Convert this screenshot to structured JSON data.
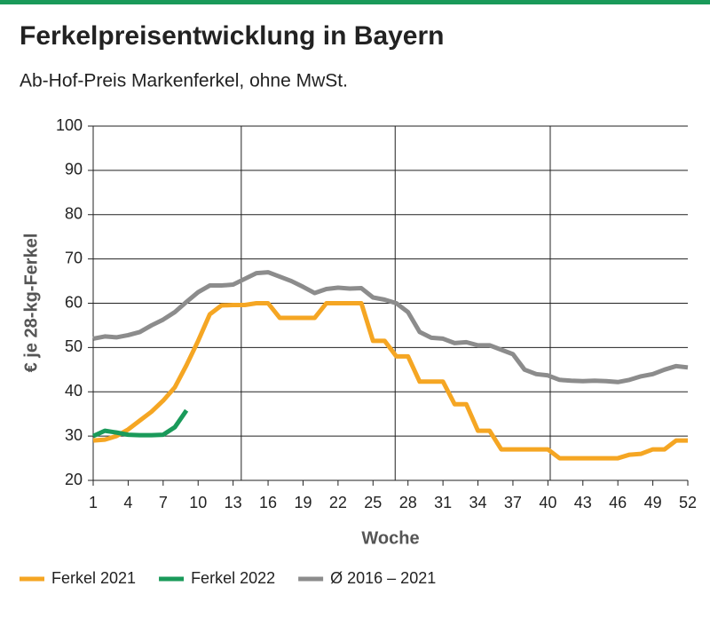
{
  "chart_data": {
    "type": "line",
    "title": "Ferkelpreisentwicklung in Bayern",
    "subtitle": "Ab-Hof-Preis Markenferkel, ohne MwSt.",
    "x_label": "Woche",
    "y_label": "€ je 28-kg-Ferkel",
    "x": [
      1,
      2,
      3,
      4,
      5,
      6,
      7,
      8,
      9,
      10,
      11,
      12,
      13,
      14,
      15,
      16,
      17,
      18,
      19,
      20,
      21,
      22,
      23,
      24,
      25,
      26,
      27,
      28,
      29,
      30,
      31,
      32,
      33,
      34,
      35,
      36,
      37,
      38,
      39,
      40,
      41,
      42,
      43,
      44,
      45,
      46,
      47,
      48,
      49,
      50,
      51,
      52
    ],
    "xlim": [
      1,
      52
    ],
    "xticks": [
      1,
      4,
      7,
      10,
      13,
      16,
      19,
      22,
      25,
      28,
      31,
      34,
      37,
      40,
      43,
      46,
      49,
      52
    ],
    "xgrid": [
      13.7,
      26.9,
      40.2
    ],
    "ylim": [
      20,
      100
    ],
    "yticks": [
      20,
      30,
      40,
      50,
      60,
      70,
      80,
      90,
      100
    ],
    "grid": true,
    "legend": "bottom",
    "series": [
      {
        "name": "Ferkel 2021",
        "color": "#f5a623",
        "values": [
          29,
          29.2,
          30,
          31.5,
          33.5,
          35.5,
          38,
          41,
          46,
          51.5,
          57.5,
          59.5,
          59.6,
          59.6,
          60,
          60,
          56.7,
          56.7,
          56.7,
          56.7,
          60,
          60,
          60,
          60,
          51.5,
          51.5,
          48,
          48,
          42.3,
          42.3,
          42.3,
          37.2,
          37.2,
          31.2,
          31.2,
          27,
          27,
          27,
          27,
          27,
          25,
          25,
          25,
          25,
          25,
          25,
          25.8,
          26,
          27,
          27,
          29,
          29
        ]
      },
      {
        "name": "Ferkel 2022",
        "color": "#1a9a5a",
        "values": [
          30,
          31.2,
          30.8,
          30.3,
          30.2,
          30.2,
          30.3,
          32,
          35.8,
          null,
          null,
          null,
          null,
          null,
          null,
          null,
          null,
          null,
          null,
          null,
          null,
          null,
          null,
          null,
          null,
          null,
          null,
          null,
          null,
          null,
          null,
          null,
          null,
          null,
          null,
          null,
          null,
          null,
          null,
          null,
          null,
          null,
          null,
          null,
          null,
          null,
          null,
          null,
          null,
          null,
          null,
          null
        ]
      },
      {
        "name": "Ø 2016 – 2021",
        "color": "#8c8c8c",
        "values": [
          52,
          52.5,
          52.3,
          52.8,
          53.5,
          55,
          56.3,
          58,
          60.3,
          62.5,
          64,
          64,
          64.2,
          65.5,
          66.8,
          67,
          66,
          65,
          63.7,
          62.3,
          63.2,
          63.5,
          63.3,
          63.4,
          61.3,
          60.8,
          60,
          58,
          53.5,
          52.2,
          52,
          51,
          51.2,
          50.5,
          50.5,
          49.5,
          48.5,
          45,
          44,
          43.7,
          42.7,
          42.5,
          42.4,
          42.5,
          42.4,
          42.2,
          42.7,
          43.5,
          44,
          45,
          45.8,
          45.5
        ]
      }
    ]
  }
}
